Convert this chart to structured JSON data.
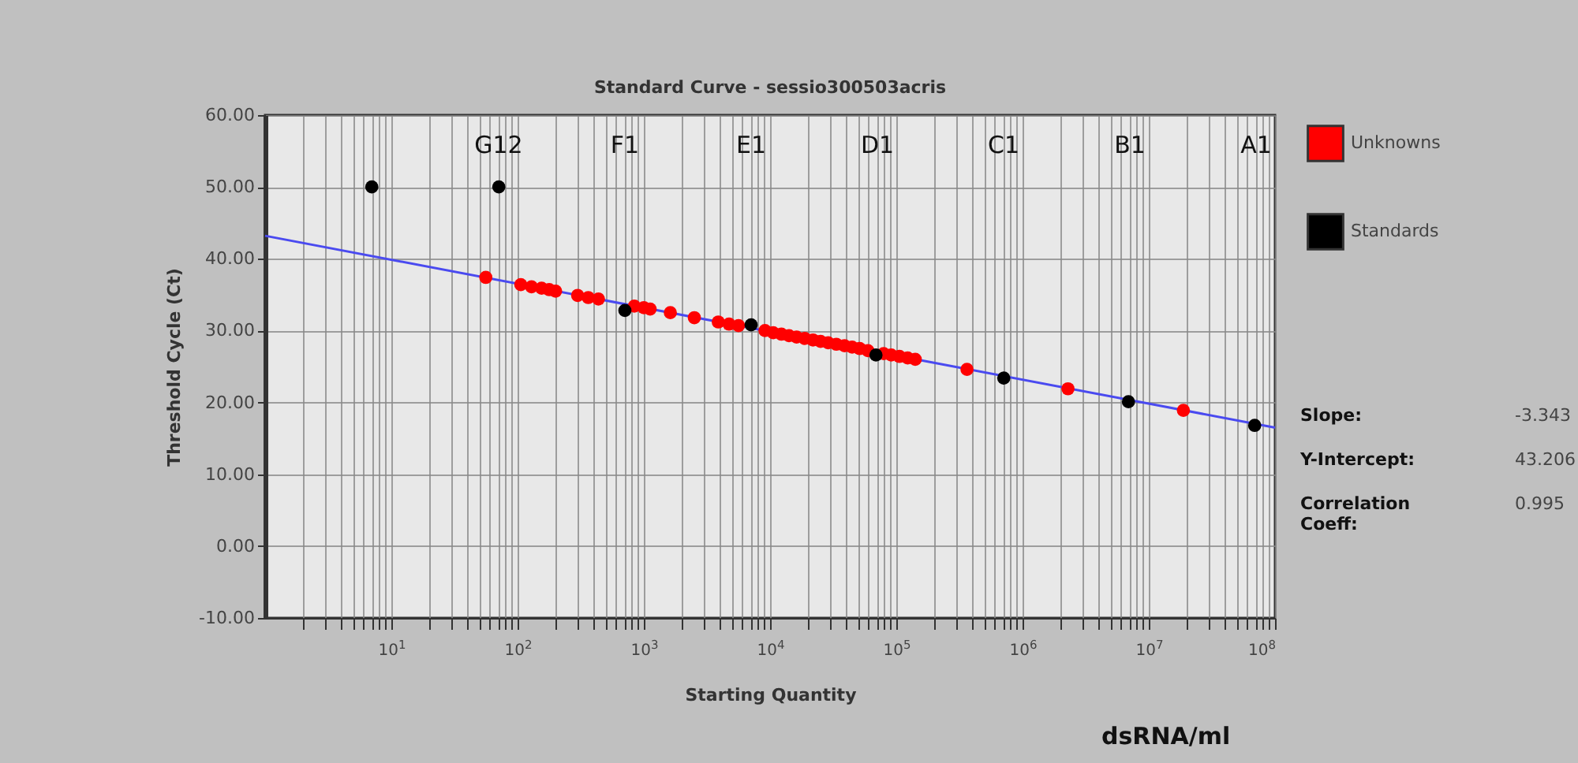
{
  "chart_data": {
    "type": "scatter",
    "title": "Standard Curve - sessio300503acris",
    "xlabel": "Starting Quantity",
    "ylabel": "Threshold Cycle (Ct)",
    "log": "x",
    "grid": true,
    "legend": "right",
    "marker": "circle",
    "xlim": [
      1,
      100000000
    ],
    "xticks": [
      {
        "value": 2,
        "label": null
      },
      {
        "value": 3,
        "label": null
      },
      {
        "value": 4,
        "label": null
      },
      {
        "value": 5,
        "label": null
      },
      {
        "value": 6,
        "label": null
      },
      {
        "value": 7,
        "label": null
      },
      {
        "value": 8,
        "label": null
      },
      {
        "value": 9,
        "label": null
      },
      {
        "value": 10,
        "label": "10$^{1}$"
      },
      {
        "value": 20,
        "label": null
      },
      {
        "value": 30,
        "label": null
      },
      {
        "value": 40,
        "label": null
      },
      {
        "value": 50,
        "label": null
      },
      {
        "value": 60,
        "label": null
      },
      {
        "value": 70,
        "label": null
      },
      {
        "value": 80,
        "label": null
      },
      {
        "value": 90,
        "label": null
      },
      {
        "value": 100,
        "label": "10$^{2}$"
      },
      {
        "value": 200,
        "label": null
      },
      {
        "value": 300,
        "label": null
      },
      {
        "value": 400,
        "label": null
      },
      {
        "value": 500,
        "label": null
      },
      {
        "value": 600,
        "label": null
      },
      {
        "value": 700,
        "label": null
      },
      {
        "value": 800,
        "label": null
      },
      {
        "value": 900,
        "label": null
      },
      {
        "value": 1000,
        "label": "10$^{3}$"
      },
      {
        "value": 2000,
        "label": null
      },
      {
        "value": 3000,
        "label": null
      },
      {
        "value": 4000,
        "label": null
      },
      {
        "value": 5000,
        "label": null
      },
      {
        "value": 6000,
        "label": null
      },
      {
        "value": 7000,
        "label": null
      },
      {
        "value": 8000,
        "label": null
      },
      {
        "value": 9000,
        "label": null
      },
      {
        "value": 10000,
        "label": "10$^{4}$"
      },
      {
        "value": 20000,
        "label": null
      },
      {
        "value": 30000,
        "label": null
      },
      {
        "value": 40000,
        "label": null
      },
      {
        "value": 50000,
        "label": null
      },
      {
        "value": 60000,
        "label": null
      },
      {
        "value": 70000,
        "label": null
      },
      {
        "value": 80000,
        "label": null
      },
      {
        "value": 90000,
        "label": null
      },
      {
        "value": 100000,
        "label": "10$^{5}$"
      },
      {
        "value": 200000,
        "label": null
      },
      {
        "value": 300000,
        "label": null
      },
      {
        "value": 400000,
        "label": null
      },
      {
        "value": 500000,
        "label": null
      },
      {
        "value": 600000,
        "label": null
      },
      {
        "value": 700000,
        "label": null
      },
      {
        "value": 800000,
        "label": null
      },
      {
        "value": 900000,
        "label": null
      },
      {
        "value": 1000000,
        "label": "10$^{6}$"
      },
      {
        "value": 2000000,
        "label": null
      },
      {
        "value": 3000000,
        "label": null
      },
      {
        "value": 4000000,
        "label": null
      },
      {
        "value": 5000000,
        "label": null
      },
      {
        "value": 6000000,
        "label": null
      },
      {
        "value": 7000000,
        "label": null
      },
      {
        "value": 8000000,
        "label": null
      },
      {
        "value": 9000000,
        "label": null
      },
      {
        "value": 10000000,
        "label": "10$^{7}$"
      },
      {
        "value": 20000000,
        "label": null
      },
      {
        "value": 30000000,
        "label": null
      },
      {
        "value": 40000000,
        "label": null
      },
      {
        "value": 50000000,
        "label": null
      },
      {
        "value": 60000000,
        "label": null
      },
      {
        "value": 70000000,
        "label": null
      },
      {
        "value": 80000000,
        "label": null
      },
      {
        "value": 90000000,
        "label": null
      },
      {
        "value": 100000000,
        "label": "10$^{8}$"
      }
    ],
    "ylim": [
      -10,
      60
    ],
    "yticks": [
      {
        "value": -10,
        "label": "-10.00"
      },
      {
        "value": 0,
        "label": "0.00"
      },
      {
        "value": 10,
        "label": "10.00"
      },
      {
        "value": 20,
        "label": "20.00"
      },
      {
        "value": 30,
        "label": "30.00"
      },
      {
        "value": 40,
        "label": "40.00"
      },
      {
        "value": 50,
        "label": "50.00"
      },
      {
        "value": 60,
        "label": "60.00"
      }
    ],
    "series": [
      {
        "type": "line",
        "marker": "none",
        "color": "#4a4af0",
        "x": [
          1,
          100000000
        ],
        "values": [
          43.2,
          16.5
        ]
      },
      {
        "name": "Unknowns",
        "color": "#ff0000",
        "x": [
          56,
          106,
          129,
          155,
          178,
          200,
          299,
          363,
          437,
          841,
          1000,
          1122,
          1622,
          2512,
          3890,
          4732,
          5623,
          9120,
          10590,
          12300,
          14130,
          16220,
          18840,
          21880,
          25120,
          28840,
          33500,
          38900,
          44670,
          51300,
          59570,
          79430,
          91200,
          105900,
          123000,
          141300,
          363100,
          2290000,
          18800000
        ],
        "values": [
          37.4,
          36.4,
          36.1,
          35.9,
          35.7,
          35.5,
          34.9,
          34.6,
          34.4,
          33.4,
          33.2,
          33.0,
          32.5,
          31.8,
          31.2,
          30.9,
          30.7,
          30.0,
          29.7,
          29.5,
          29.3,
          29.1,
          28.9,
          28.7,
          28.5,
          28.3,
          28.1,
          27.9,
          27.7,
          27.5,
          27.2,
          26.8,
          26.6,
          26.4,
          26.2,
          26.0,
          24.6,
          21.9,
          18.9
        ]
      },
      {
        "name": "Standards",
        "color": "#000000",
        "x": [
          7,
          71,
          708,
          7080,
          69000,
          710000,
          6900000,
          69000000
        ],
        "values": [
          50,
          50,
          32.8,
          30.8,
          26.6,
          23.4,
          20.1,
          16.8
        ]
      }
    ],
    "annotations": [
      "G12",
      "F1",
      "E1",
      "D1",
      "C1",
      "B1",
      "A1",
      "dsRNA/ml",
      "Slope:",
      "-3.343",
      "Y-Intercept:",
      "43.206",
      "Correlation Coeff:",
      "0.995"
    ]
  }
}
